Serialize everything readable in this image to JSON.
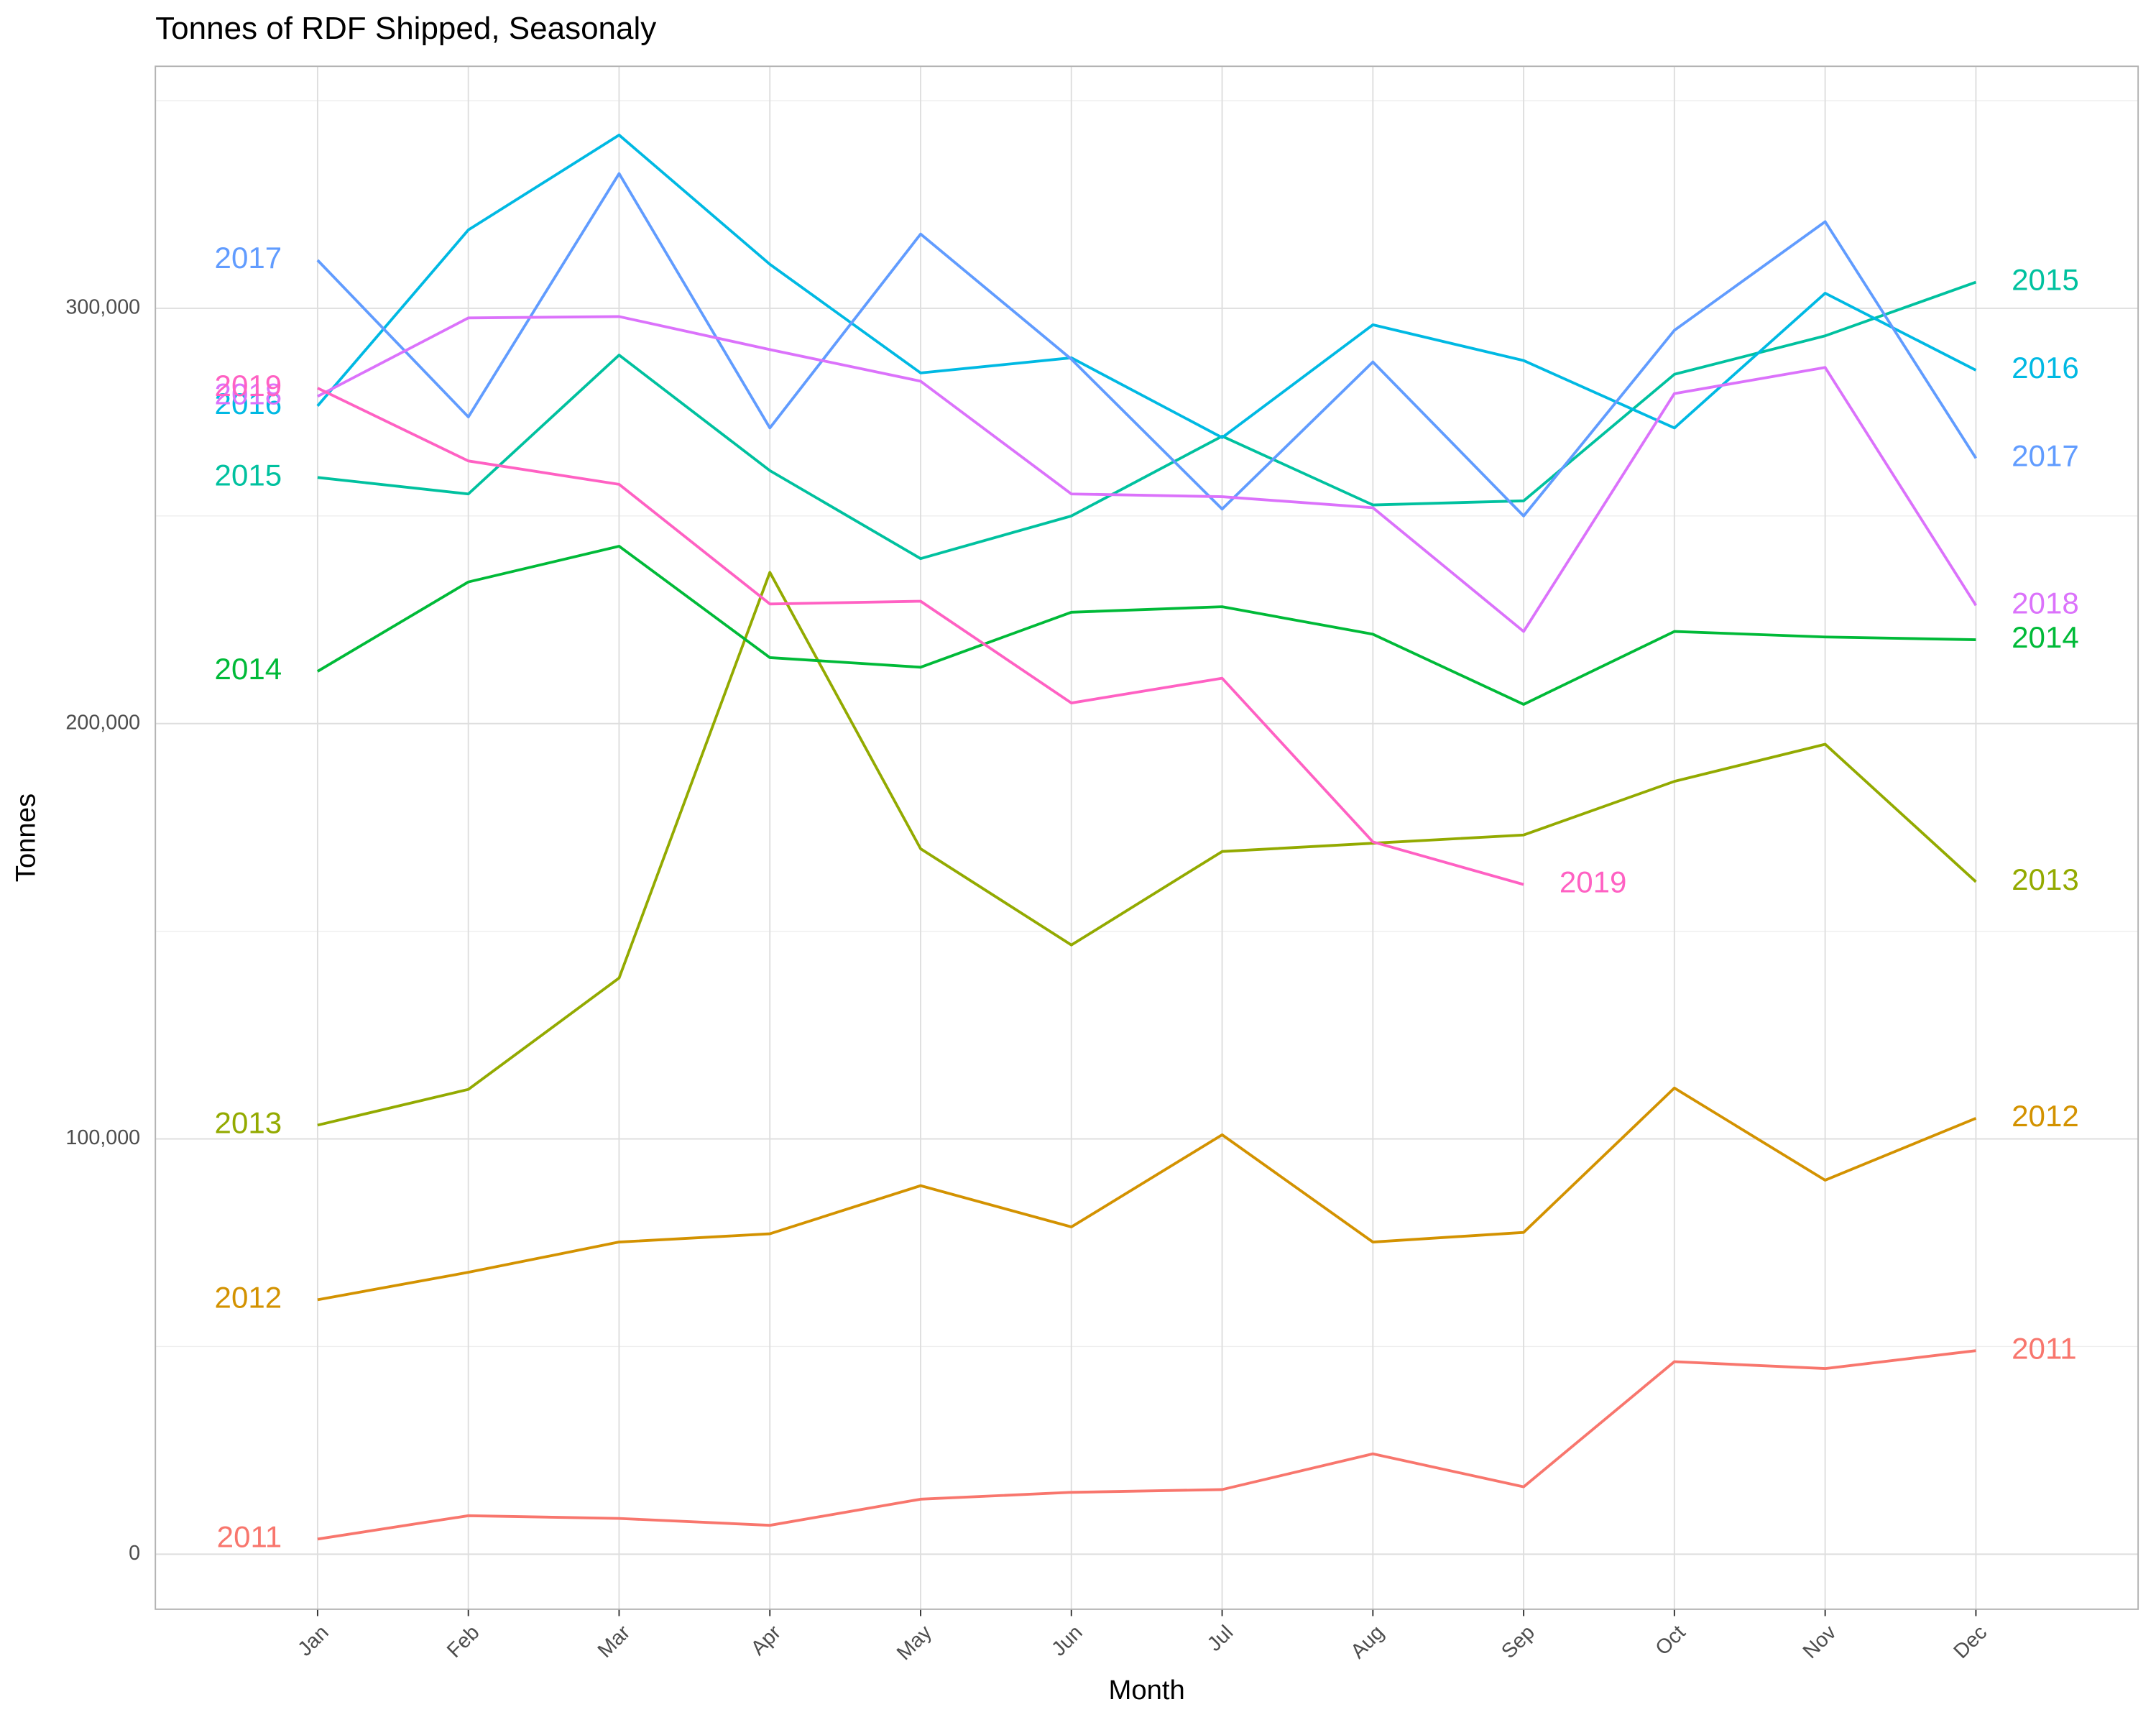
{
  "chart_data": {
    "type": "line",
    "title": "Tonnes of RDF Shipped, Seasonaly",
    "x_label": "Month",
    "y_label": "Tonnes",
    "categories": [
      "Jan",
      "Feb",
      "Mar",
      "Apr",
      "May",
      "Jun",
      "Jul",
      "Aug",
      "Sep",
      "Oct",
      "Nov",
      "Dec"
    ],
    "ylim": [
      -13245,
      358278
    ],
    "yticks": [
      0,
      {
        "value": 100000,
        "label": "100,000"
      },
      {
        "value": 200000,
        "label": "200,000"
      },
      {
        "value": 300000,
        "label": "300,000"
      }
    ],
    "grid": true,
    "series": [
      {
        "name": "2011",
        "color": "#F8766D",
        "values": [
          3642,
          9272,
          8609,
          6954,
          13245,
          14901,
          15563,
          24172,
          16225,
          46358,
          44702,
          49007
        ]
      },
      {
        "name": "2012",
        "color": "#D39200",
        "values": [
          61258,
          67881,
          75166,
          77152,
          88742,
          78808,
          100993,
          75166,
          77483,
          112252,
          90066,
          104967
        ]
      },
      {
        "name": "2013",
        "color": "#93AA00",
        "values": [
          103311,
          111921,
          138742,
          236424,
          169868,
          146689,
          169205,
          171192,
          173179,
          186093,
          195033,
          161921
        ]
      },
      {
        "name": "2014",
        "color": "#00BA38",
        "values": [
          212583,
          234106,
          242715,
          215894,
          213576,
          226821,
          228146,
          221523,
          204636,
          222185,
          220861,
          220199
        ]
      },
      {
        "name": "2015",
        "color": "#00C19F",
        "values": [
          259272,
          255298,
          288742,
          260927,
          239735,
          250000,
          269205,
          252649,
          253642,
          284106,
          293377,
          306291
        ]
      },
      {
        "name": "2016",
        "color": "#00B9E3",
        "values": [
          276490,
          318874,
          341722,
          310596,
          284437,
          288079,
          268874,
          296026,
          287417,
          271192,
          303642,
          285099
        ]
      },
      {
        "name": "2017",
        "color": "#619CFF",
        "values": [
          311589,
          273841,
          332450,
          271192,
          317881,
          287748,
          251656,
          287086,
          250000,
          294702,
          320861,
          263907
        ]
      },
      {
        "name": "2018",
        "color": "#DB72FB",
        "values": [
          278808,
          297682,
          298013,
          290066,
          282450,
          255298,
          254636,
          251987,
          222185,
          279470,
          285762,
          228477
        ]
      },
      {
        "name": "2019",
        "color": "#FF61C3",
        "values": [
          280795,
          263245,
          257616,
          228808,
          229470,
          204967,
          210927,
          171523,
          161258,
          null,
          null,
          null
        ]
      }
    ]
  }
}
